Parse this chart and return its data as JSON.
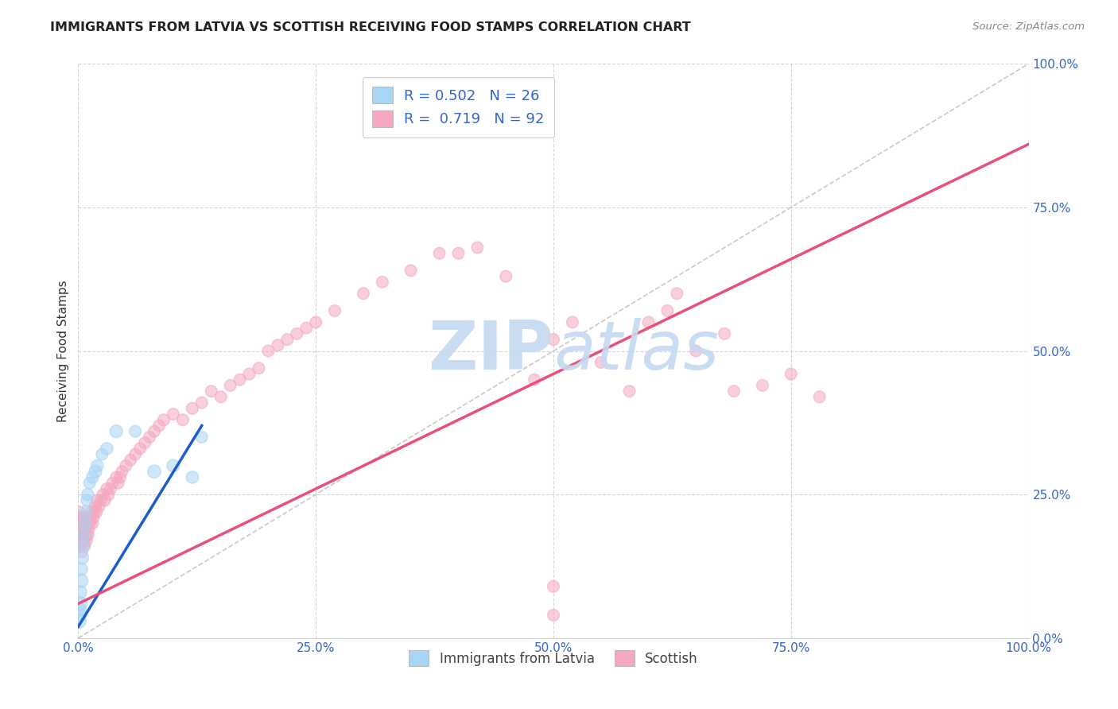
{
  "title": "IMMIGRANTS FROM LATVIA VS SCOTTISH RECEIVING FOOD STAMPS CORRELATION CHART",
  "source": "Source: ZipAtlas.com",
  "ylabel": "Receiving Food Stamps",
  "xlim": [
    0,
    1
  ],
  "ylim": [
    0,
    1
  ],
  "xticks": [
    0.0,
    0.25,
    0.5,
    0.75,
    1.0
  ],
  "yticks": [
    0.0,
    0.25,
    0.5,
    0.75,
    1.0
  ],
  "xticklabels": [
    "0.0%",
    "25.0%",
    "50.0%",
    "75.0%",
    "100.0%"
  ],
  "yticklabels": [
    "0.0%",
    "25.0%",
    "50.0%",
    "75.0%",
    "100.0%"
  ],
  "latvia_R": 0.502,
  "latvia_N": 26,
  "scottish_R": 0.719,
  "scottish_N": 92,
  "latvia_color": "#A8D4F5",
  "scottish_color": "#F5A8C0",
  "latvia_edge_color": "#A8D4F5",
  "scottish_edge_color": "#F5A8C0",
  "latvia_line_color": "#1A5EC7",
  "scottish_line_color": "#E8507A",
  "watermark_color": "#C5D9F0",
  "legend_text_color": "#3366CC",
  "tick_color": "#3366CC",
  "background_color": "#FFFFFF",
  "grid_color": "#CCCCCC",
  "latvia_line_x": [
    0.0,
    0.13
  ],
  "latvia_line_y": [
    0.02,
    0.37
  ],
  "scottish_line_x": [
    0.0,
    1.0
  ],
  "scottish_line_y": [
    0.06,
    0.86
  ],
  "latvia_points_x": [
    0.0005,
    0.001,
    0.0015,
    0.002,
    0.002,
    0.003,
    0.003,
    0.004,
    0.005,
    0.006,
    0.007,
    0.008,
    0.009,
    0.01,
    0.012,
    0.015,
    0.018,
    0.02,
    0.025,
    0.03,
    0.04,
    0.06,
    0.08,
    0.1,
    0.12,
    0.13
  ],
  "latvia_points_y": [
    0.03,
    0.04,
    0.05,
    0.06,
    0.08,
    0.1,
    0.12,
    0.14,
    0.16,
    0.18,
    0.2,
    0.22,
    0.24,
    0.25,
    0.27,
    0.28,
    0.29,
    0.3,
    0.32,
    0.33,
    0.36,
    0.36,
    0.29,
    0.3,
    0.28,
    0.35
  ],
  "latvia_sizes": [
    180,
    160,
    140,
    160,
    140,
    150,
    130,
    140,
    130,
    120,
    130,
    120,
    110,
    120,
    110,
    120,
    130,
    120,
    110,
    120,
    130,
    110,
    140,
    130,
    120,
    110
  ],
  "scottish_points_x": [
    0.0005,
    0.001,
    0.001,
    0.002,
    0.002,
    0.003,
    0.003,
    0.004,
    0.004,
    0.005,
    0.005,
    0.006,
    0.006,
    0.007,
    0.007,
    0.008,
    0.008,
    0.009,
    0.009,
    0.01,
    0.01,
    0.011,
    0.012,
    0.013,
    0.014,
    0.015,
    0.016,
    0.017,
    0.018,
    0.019,
    0.02,
    0.022,
    0.024,
    0.026,
    0.028,
    0.03,
    0.032,
    0.034,
    0.036,
    0.04,
    0.042,
    0.044,
    0.046,
    0.05,
    0.055,
    0.06,
    0.065,
    0.07,
    0.075,
    0.08,
    0.085,
    0.09,
    0.1,
    0.11,
    0.12,
    0.13,
    0.14,
    0.15,
    0.16,
    0.17,
    0.18,
    0.19,
    0.2,
    0.21,
    0.22,
    0.23,
    0.24,
    0.25,
    0.27,
    0.3,
    0.32,
    0.35,
    0.38,
    0.4,
    0.42,
    0.45,
    0.48,
    0.5,
    0.52,
    0.55,
    0.58,
    0.6,
    0.62,
    0.63,
    0.65,
    0.68,
    0.69,
    0.72,
    0.75,
    0.78,
    0.5,
    0.5
  ],
  "scottish_points_y": [
    0.18,
    0.2,
    0.22,
    0.18,
    0.21,
    0.16,
    0.2,
    0.15,
    0.19,
    0.18,
    0.21,
    0.17,
    0.2,
    0.16,
    0.19,
    0.18,
    0.21,
    0.17,
    0.2,
    0.18,
    0.21,
    0.19,
    0.2,
    0.21,
    0.22,
    0.2,
    0.21,
    0.22,
    0.23,
    0.22,
    0.24,
    0.23,
    0.24,
    0.25,
    0.24,
    0.26,
    0.25,
    0.26,
    0.27,
    0.28,
    0.27,
    0.28,
    0.29,
    0.3,
    0.31,
    0.32,
    0.33,
    0.34,
    0.35,
    0.36,
    0.37,
    0.38,
    0.39,
    0.38,
    0.4,
    0.41,
    0.43,
    0.42,
    0.44,
    0.45,
    0.46,
    0.47,
    0.5,
    0.51,
    0.52,
    0.53,
    0.54,
    0.55,
    0.57,
    0.6,
    0.62,
    0.64,
    0.67,
    0.67,
    0.68,
    0.63,
    0.45,
    0.52,
    0.55,
    0.48,
    0.43,
    0.55,
    0.57,
    0.6,
    0.5,
    0.53,
    0.43,
    0.44,
    0.46,
    0.42,
    0.09,
    0.04
  ],
  "scottish_sizes": [
    120,
    120,
    110,
    110,
    120,
    100,
    110,
    100,
    110,
    110,
    120,
    100,
    110,
    100,
    110,
    120,
    110,
    100,
    110,
    120,
    110,
    110,
    110,
    110,
    120,
    110,
    110,
    120,
    110,
    120,
    110,
    110,
    110,
    110,
    110,
    110,
    110,
    110,
    110,
    110,
    110,
    110,
    110,
    110,
    110,
    110,
    110,
    110,
    110,
    110,
    110,
    110,
    110,
    110,
    110,
    110,
    110,
    110,
    110,
    110,
    110,
    110,
    110,
    110,
    110,
    110,
    110,
    110,
    110,
    110,
    110,
    110,
    110,
    110,
    110,
    110,
    110,
    110,
    110,
    110,
    110,
    110,
    110,
    110,
    110,
    110,
    110,
    110,
    110,
    110,
    110,
    110
  ]
}
